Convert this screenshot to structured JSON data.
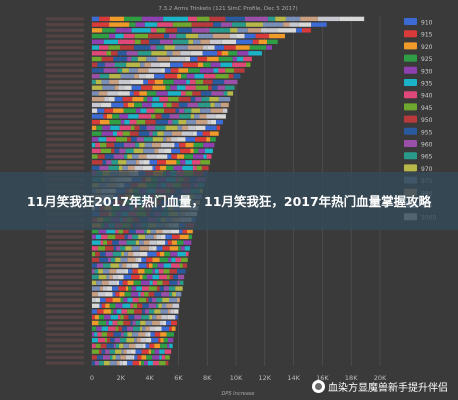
{
  "chart_data": {
    "type": "bar",
    "stacked": true,
    "orientation": "horizontal",
    "title": "7.3.2 Arms Trinkets (121 SimC Profile, Dec 5 2017)",
    "xlabel": "DPS Increase",
    "xlim": [
      0,
      20000
    ],
    "xticks": [
      "0",
      "2K",
      "4K",
      "6K",
      "8K",
      "10K",
      "12K",
      "14K",
      "16K",
      "18K",
      "20K"
    ],
    "grid": true,
    "legend_position": "right",
    "categories": [
      "",
      "",
      "",
      "",
      "",
      "",
      "",
      "",
      "",
      "",
      "",
      "",
      "",
      "",
      "",
      "",
      "",
      "",
      "",
      "",
      "",
      "",
      "",
      "",
      "",
      "",
      "",
      "",
      "",
      "",
      "",
      "",
      "",
      "",
      "",
      "",
      "",
      "",
      "",
      "",
      "",
      "",
      "",
      "",
      "",
      "",
      "",
      "",
      "",
      "",
      "",
      "",
      "",
      "",
      "",
      "",
      "",
      "",
      "",
      "",
      ""
    ],
    "totals": [
      18900,
      16300,
      15200,
      13400,
      12900,
      12500,
      11800,
      11100,
      11000,
      10600,
      10300,
      10100,
      9900,
      9800,
      9600,
      9500,
      9400,
      9300,
      9100,
      8900,
      8800,
      8600,
      8500,
      8400,
      8300,
      8200,
      8100,
      8000,
      7900,
      7800,
      7700,
      7600,
      7500,
      7400,
      7300,
      7200,
      7100,
      7000,
      6950,
      6900,
      6800,
      6700,
      6650,
      6600,
      6500,
      6400,
      6350,
      6300,
      6200,
      6100,
      6050,
      6000,
      5950,
      5900,
      5800,
      5700,
      5650,
      5600,
      5500,
      5400,
      5300
    ],
    "series": [
      {
        "name": "910",
        "color": "#3d6bd6"
      },
      {
        "name": "915",
        "color": "#d93b3b"
      },
      {
        "name": "920",
        "color": "#f09a2a"
      },
      {
        "name": "925",
        "color": "#2f9e44"
      },
      {
        "name": "930",
        "color": "#8e3fb0"
      },
      {
        "name": "935",
        "color": "#1bb3c7"
      },
      {
        "name": "940",
        "color": "#e0487a"
      },
      {
        "name": "945",
        "color": "#6fa82f"
      },
      {
        "name": "950",
        "color": "#b83a3a"
      },
      {
        "name": "955",
        "color": "#2a5a9e"
      },
      {
        "name": "960",
        "color": "#9a4fa8"
      },
      {
        "name": "965",
        "color": "#2a9a8a"
      },
      {
        "name": "970",
        "color": "#b8b84a"
      },
      {
        "name": "975",
        "color": "#7a8fb8"
      },
      {
        "name": "980",
        "color": "#c89f80"
      },
      {
        "name": "985",
        "color": "#c8c8d0"
      },
      {
        "name": "1000",
        "color": "#d8d8d8"
      }
    ]
  },
  "banner": {
    "title": "11月笑我狂2017年热门血量，11月笑我狂，2017年热门血量掌握攻略"
  },
  "watermark": {
    "text": "血染方显魔兽新手提升伴侣"
  }
}
